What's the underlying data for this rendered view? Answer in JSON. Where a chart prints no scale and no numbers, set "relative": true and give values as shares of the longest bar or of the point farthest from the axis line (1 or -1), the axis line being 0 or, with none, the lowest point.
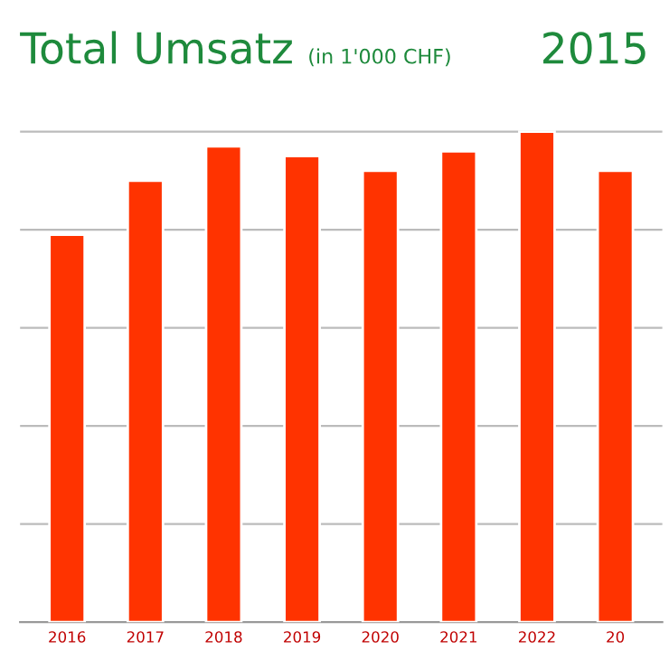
{
  "chart_data": {
    "type": "bar",
    "title": "Total Umsatz",
    "subtitle": "(in 1'000 CHF)",
    "annotations": [
      "2015"
    ],
    "categories": [
      "2016",
      "2017",
      "2018",
      "2019",
      "2020",
      "2021",
      "2022",
      "20"
    ],
    "values": [
      0.79,
      0.9,
      0.97,
      0.95,
      0.92,
      0.96,
      1.0,
      0.92
    ],
    "color": "#ff3300",
    "relative": true,
    "grid": "y"
  }
}
